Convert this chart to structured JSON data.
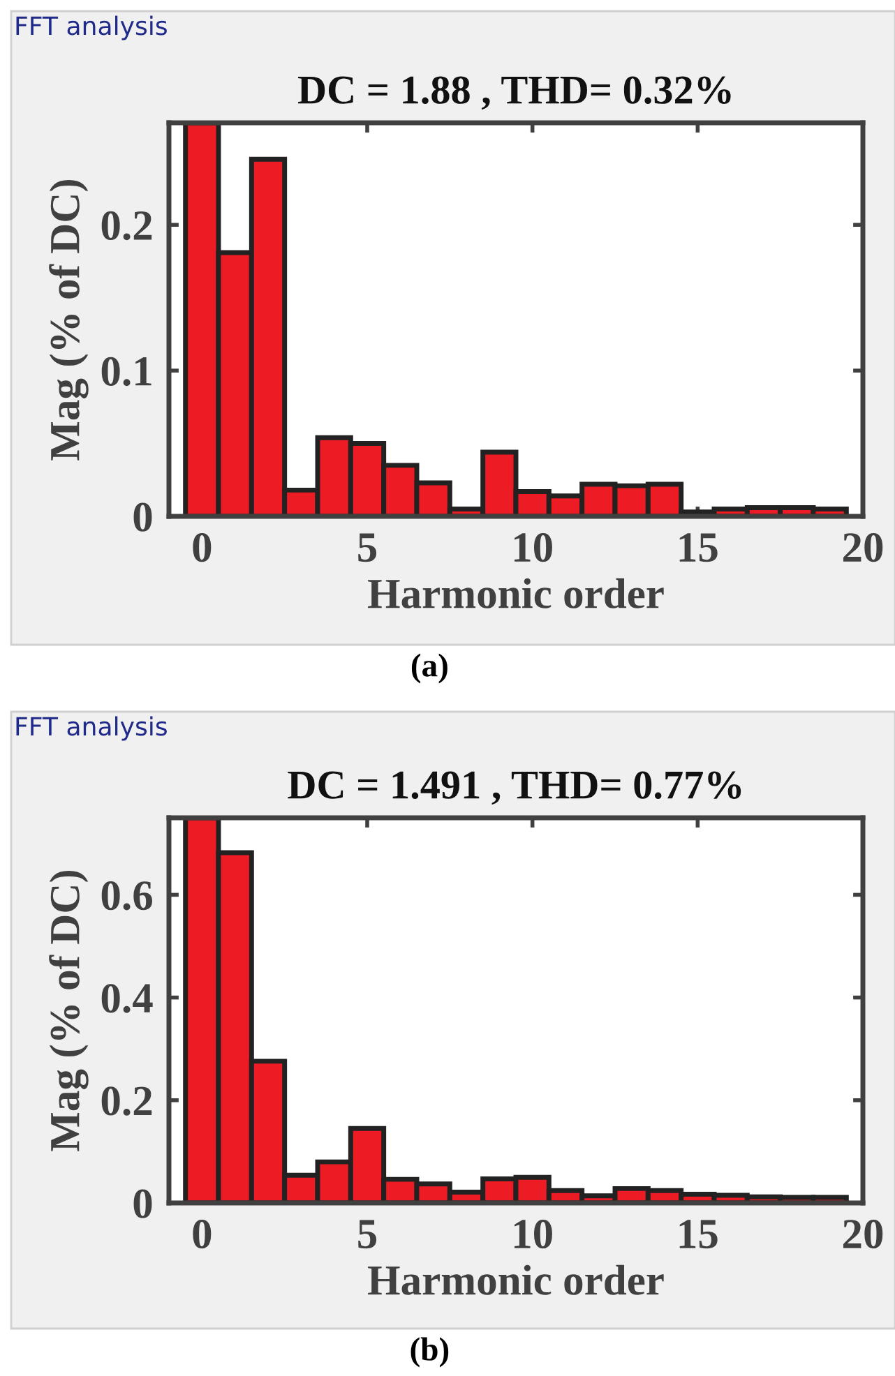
{
  "chart_data": [
    {
      "type": "bar",
      "title": "DC = 1.88 , THD= 0.32%",
      "xlabel": "Harmonic order",
      "ylabel": "Mag (% of DC)",
      "annotations": [
        "FFT analysis",
        "(a)"
      ],
      "color": "#ed1c24",
      "x": [
        0,
        1,
        2,
        3,
        4,
        5,
        6,
        7,
        8,
        9,
        10,
        11,
        12,
        13,
        14,
        15,
        16,
        17,
        18,
        19
      ],
      "values": [
        0.27,
        0.181,
        0.245,
        0.018,
        0.054,
        0.05,
        0.035,
        0.023,
        0.005,
        0.044,
        0.017,
        0.014,
        0.022,
        0.021,
        0.022,
        0.003,
        0.005,
        0.006,
        0.006,
        0.005
      ],
      "xlim": [
        -1,
        20
      ],
      "ylim": [
        0,
        0.27
      ],
      "xticks": [
        0,
        5,
        10,
        15,
        20
      ],
      "yticks": [
        0,
        0.1,
        0.2
      ],
      "grid": false
    },
    {
      "type": "bar",
      "title": "DC = 1.491 , THD= 0.77%",
      "xlabel": "Harmonic order",
      "ylabel": "Mag (% of DC)",
      "annotations": [
        "FFT analysis",
        "(b)"
      ],
      "color": "#ed1c24",
      "x": [
        0,
        1,
        2,
        3,
        4,
        5,
        6,
        7,
        8,
        9,
        10,
        11,
        12,
        13,
        14,
        15,
        16,
        17,
        18,
        19
      ],
      "values": [
        0.75,
        0.682,
        0.276,
        0.054,
        0.08,
        0.145,
        0.046,
        0.037,
        0.021,
        0.047,
        0.05,
        0.024,
        0.014,
        0.028,
        0.024,
        0.017,
        0.015,
        0.012,
        0.011,
        0.011
      ],
      "xlim": [
        -1,
        20
      ],
      "ylim": [
        0,
        0.75
      ],
      "xticks": [
        0,
        5,
        10,
        15,
        20
      ],
      "yticks": [
        0,
        0.2,
        0.4,
        0.6
      ],
      "grid": false
    }
  ]
}
